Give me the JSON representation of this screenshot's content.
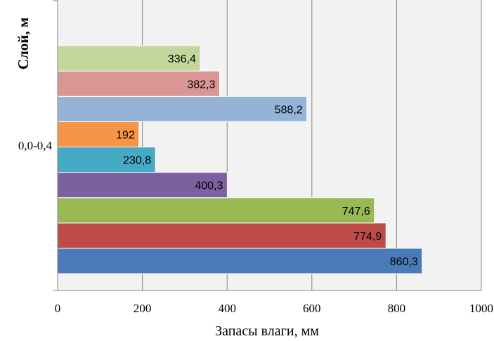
{
  "chart_data": {
    "type": "bar",
    "orientation": "horizontal",
    "categories": [
      "0,0-0,4"
    ],
    "series": [
      {
        "values": [
          860.3
        ],
        "label": "860,3",
        "color": "#4a7ab8"
      },
      {
        "values": [
          774.9
        ],
        "label": "774,9",
        "color": "#be4b48"
      },
      {
        "values": [
          747.6
        ],
        "label": "747,6",
        "color": "#98b954"
      },
      {
        "values": [
          400.3
        ],
        "label": "400,3",
        "color": "#7d60a0"
      },
      {
        "values": [
          230.8
        ],
        "label": "230,8",
        "color": "#46aac5"
      },
      {
        "values": [
          192
        ],
        "label": "192",
        "color": "#f69546"
      },
      {
        "values": [
          588.2
        ],
        "label": "588,2",
        "color": "#95b3d7"
      },
      {
        "values": [
          382.3
        ],
        "label": "382,3",
        "color": "#d99694"
      },
      {
        "values": [
          336.4
        ],
        "label": "336,4",
        "color": "#c3d69b"
      }
    ],
    "xlabel": "Запасы влаги, мм",
    "ylabel": "Слой, м",
    "xlim": [
      0,
      1000
    ],
    "xticks": [
      0,
      200,
      400,
      600,
      800,
      1000
    ],
    "xtick_labels": [
      "0",
      "200",
      "400",
      "600",
      "800",
      "1000"
    ],
    "grid": "vertical",
    "plot_background": "#f2f2f2"
  }
}
